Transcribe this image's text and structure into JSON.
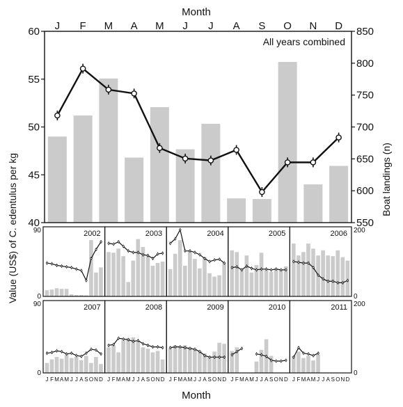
{
  "chart_data": {
    "type": "bar",
    "top_axis_title": "Month",
    "bottom_axis_title": "Month",
    "y_left_label": "Value (US$) of C. edentulus per kg",
    "y_right_label": "Boat landings (n)",
    "main": {
      "annotation": "All years combined",
      "categories": [
        "J",
        "F",
        "M",
        "A",
        "M",
        "J",
        "J",
        "A",
        "S",
        "O",
        "N",
        "D"
      ],
      "left_ylim": [
        40,
        60
      ],
      "left_ticks": [
        "40",
        "45",
        "50",
        "55",
        "60"
      ],
      "right_ylim": [
        550,
        850
      ],
      "right_ticks": [
        "550",
        "600",
        "650",
        "700",
        "750",
        "800",
        "850"
      ],
      "boat_landings": [
        685,
        718,
        776,
        652,
        731,
        665,
        705,
        588,
        587,
        802,
        610,
        639
      ],
      "value_per_kg": [
        51.2,
        56.1,
        53.9,
        53.5,
        47.8,
        46.7,
        46.5,
        47.6,
        43.2,
        46.3,
        46.3,
        48.9
      ]
    },
    "small_multiples": {
      "left_ylim": [
        0,
        90
      ],
      "left_ticks": [
        "0",
        "90"
      ],
      "right_ylim": [
        0,
        200
      ],
      "right_ticks": [
        "0",
        "200"
      ],
      "month_letters": [
        "J",
        "F",
        "M",
        "A",
        "M",
        "J",
        "J",
        "A",
        "S",
        "O",
        "N",
        "D"
      ],
      "panels": [
        {
          "year": "2002",
          "boats": [
            18,
            20,
            24,
            22,
            22,
            6,
            4,
            4,
            3,
            165,
            70,
            85
          ],
          "value": [
            44,
            43,
            41,
            40,
            39,
            38,
            36,
            34,
            21,
            50,
            62,
            72
          ]
        },
        {
          "year": "2003",
          "boats": [
            130,
            128,
            140,
            118,
            42,
            105,
            168,
            145,
            118,
            90,
            98,
            102
          ],
          "value": [
            70,
            69,
            72,
            66,
            60,
            58,
            58,
            55,
            54,
            50,
            56,
            57
          ]
        },
        {
          "year": "2004",
          "boats": [
            80,
            125,
            165,
            90,
            132,
            110,
            82,
            115,
            68,
            58,
            62,
            98
          ],
          "value": [
            70,
            76,
            88,
            60,
            60,
            58,
            55,
            50,
            46,
            48,
            49,
            44
          ]
        },
        {
          "year": "2005",
          "boats": [
            135,
            130,
            80,
            120,
            70,
            92,
            128,
            78,
            72,
            82,
            78,
            88
          ],
          "value": [
            38,
            39,
            35,
            40,
            37,
            35,
            36,
            36,
            35,
            36,
            35,
            35
          ]
        },
        {
          "year": "2006",
          "boats": [
            155,
            120,
            130,
            155,
            140,
            120,
            135,
            120,
            118,
            135,
            115,
            105
          ],
          "value": [
            46,
            45,
            44,
            44,
            38,
            28,
            23,
            20,
            20,
            18,
            18,
            21
          ]
        },
        {
          "year": "2007",
          "boats": [
            28,
            38,
            45,
            40,
            52,
            42,
            45,
            36,
            48,
            28,
            45,
            25
          ],
          "value": [
            25,
            26,
            28,
            27,
            24,
            25,
            22,
            21,
            25,
            30,
            29,
            24
          ]
        },
        {
          "year": "2008",
          "boats": [
            72,
            78,
            58,
            92,
            98,
            100,
            88,
            72,
            68,
            58,
            62,
            38
          ],
          "value": [
            35,
            36,
            44,
            43,
            42,
            40,
            41,
            37,
            35,
            33,
            33,
            32
          ]
        },
        {
          "year": "2009",
          "boats": [
            70,
            78,
            75,
            78,
            72,
            68,
            62,
            55,
            45,
            60,
            85,
            82
          ],
          "value": [
            32,
            33,
            33,
            32,
            31,
            30,
            27,
            22,
            20,
            20,
            20,
            20
          ]
        },
        {
          "year": "2010",
          "boats": [
            62,
            72,
            null,
            null,
            null,
            32,
            65,
            95,
            48,
            null,
            null,
            null
          ],
          "value": [
            23,
            27,
            31,
            null,
            null,
            24,
            23,
            21,
            16,
            15,
            15,
            16
          ]
        },
        {
          "year": "2011",
          "boats": [
            48,
            60,
            42,
            48,
            35,
            52,
            null,
            null,
            null,
            null,
            null,
            null
          ],
          "value": [
            20,
            32,
            25,
            24,
            22,
            25,
            null,
            null,
            null,
            null,
            null,
            null
          ]
        }
      ]
    }
  }
}
